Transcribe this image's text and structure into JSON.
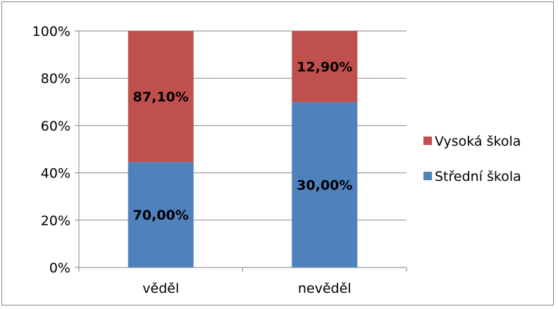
{
  "chart_data": {
    "type": "bar",
    "stacked": true,
    "categories": [
      "věděl",
      "nevěděl"
    ],
    "series": [
      {
        "name": "Střední škola",
        "values": [
          44.6,
          69.9
        ],
        "labels": [
          "70,00%",
          "30,00%"
        ],
        "color": "#4f81bd"
      },
      {
        "name": "Vysoká škola",
        "values": [
          55.4,
          30.1
        ],
        "labels": [
          "87,10%",
          "12,90%"
        ],
        "color": "#c0504d"
      }
    ],
    "y_ticks": [
      "0%",
      "20%",
      "40%",
      "60%",
      "80%",
      "100%"
    ],
    "ylim": [
      0,
      100
    ],
    "grid": true,
    "legend_position": "right",
    "legend_order": [
      "Vysoká škola",
      "Střední škola"
    ]
  }
}
